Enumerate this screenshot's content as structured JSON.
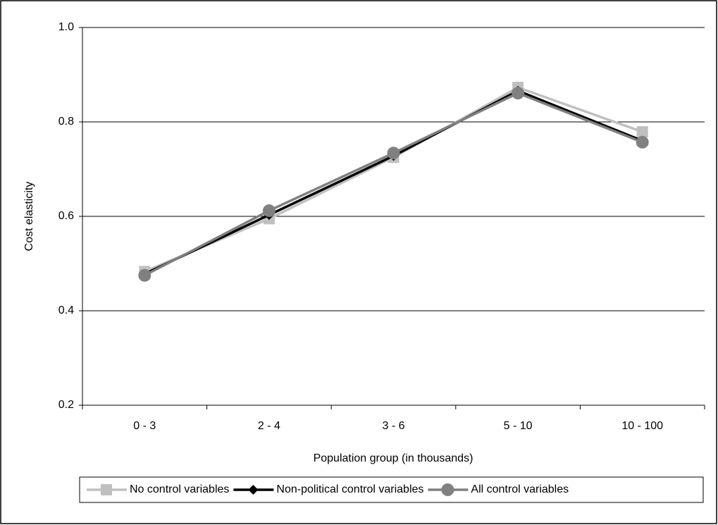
{
  "chart_data": {
    "type": "line",
    "x_label": "Population group (in thousands)",
    "y_label": "Cost elasticity",
    "categories": [
      "0 - 3",
      "2 - 4",
      "3 - 6",
      "5 - 10",
      "10 - 100"
    ],
    "series": [
      {
        "name": "No control variables",
        "color": "#c0c0c0",
        "marker": "square",
        "values": [
          0.483,
          0.595,
          0.725,
          0.873,
          0.779
        ]
      },
      {
        "name": "Non-political control variables",
        "color": "#000000",
        "marker": "diamond",
        "values": [
          0.478,
          0.603,
          0.728,
          0.866,
          0.76
        ]
      },
      {
        "name": "All control variables",
        "color": "#808080",
        "marker": "circle",
        "values": [
          0.475,
          0.612,
          0.734,
          0.861,
          0.757
        ]
      }
    ],
    "ylim": [
      0.2,
      1.0
    ],
    "yticks": [
      0.2,
      0.4,
      0.6,
      0.8,
      {
        "value": 1.0,
        "label": "1.0"
      }
    ],
    "grid": true,
    "legend": "bottom"
  }
}
